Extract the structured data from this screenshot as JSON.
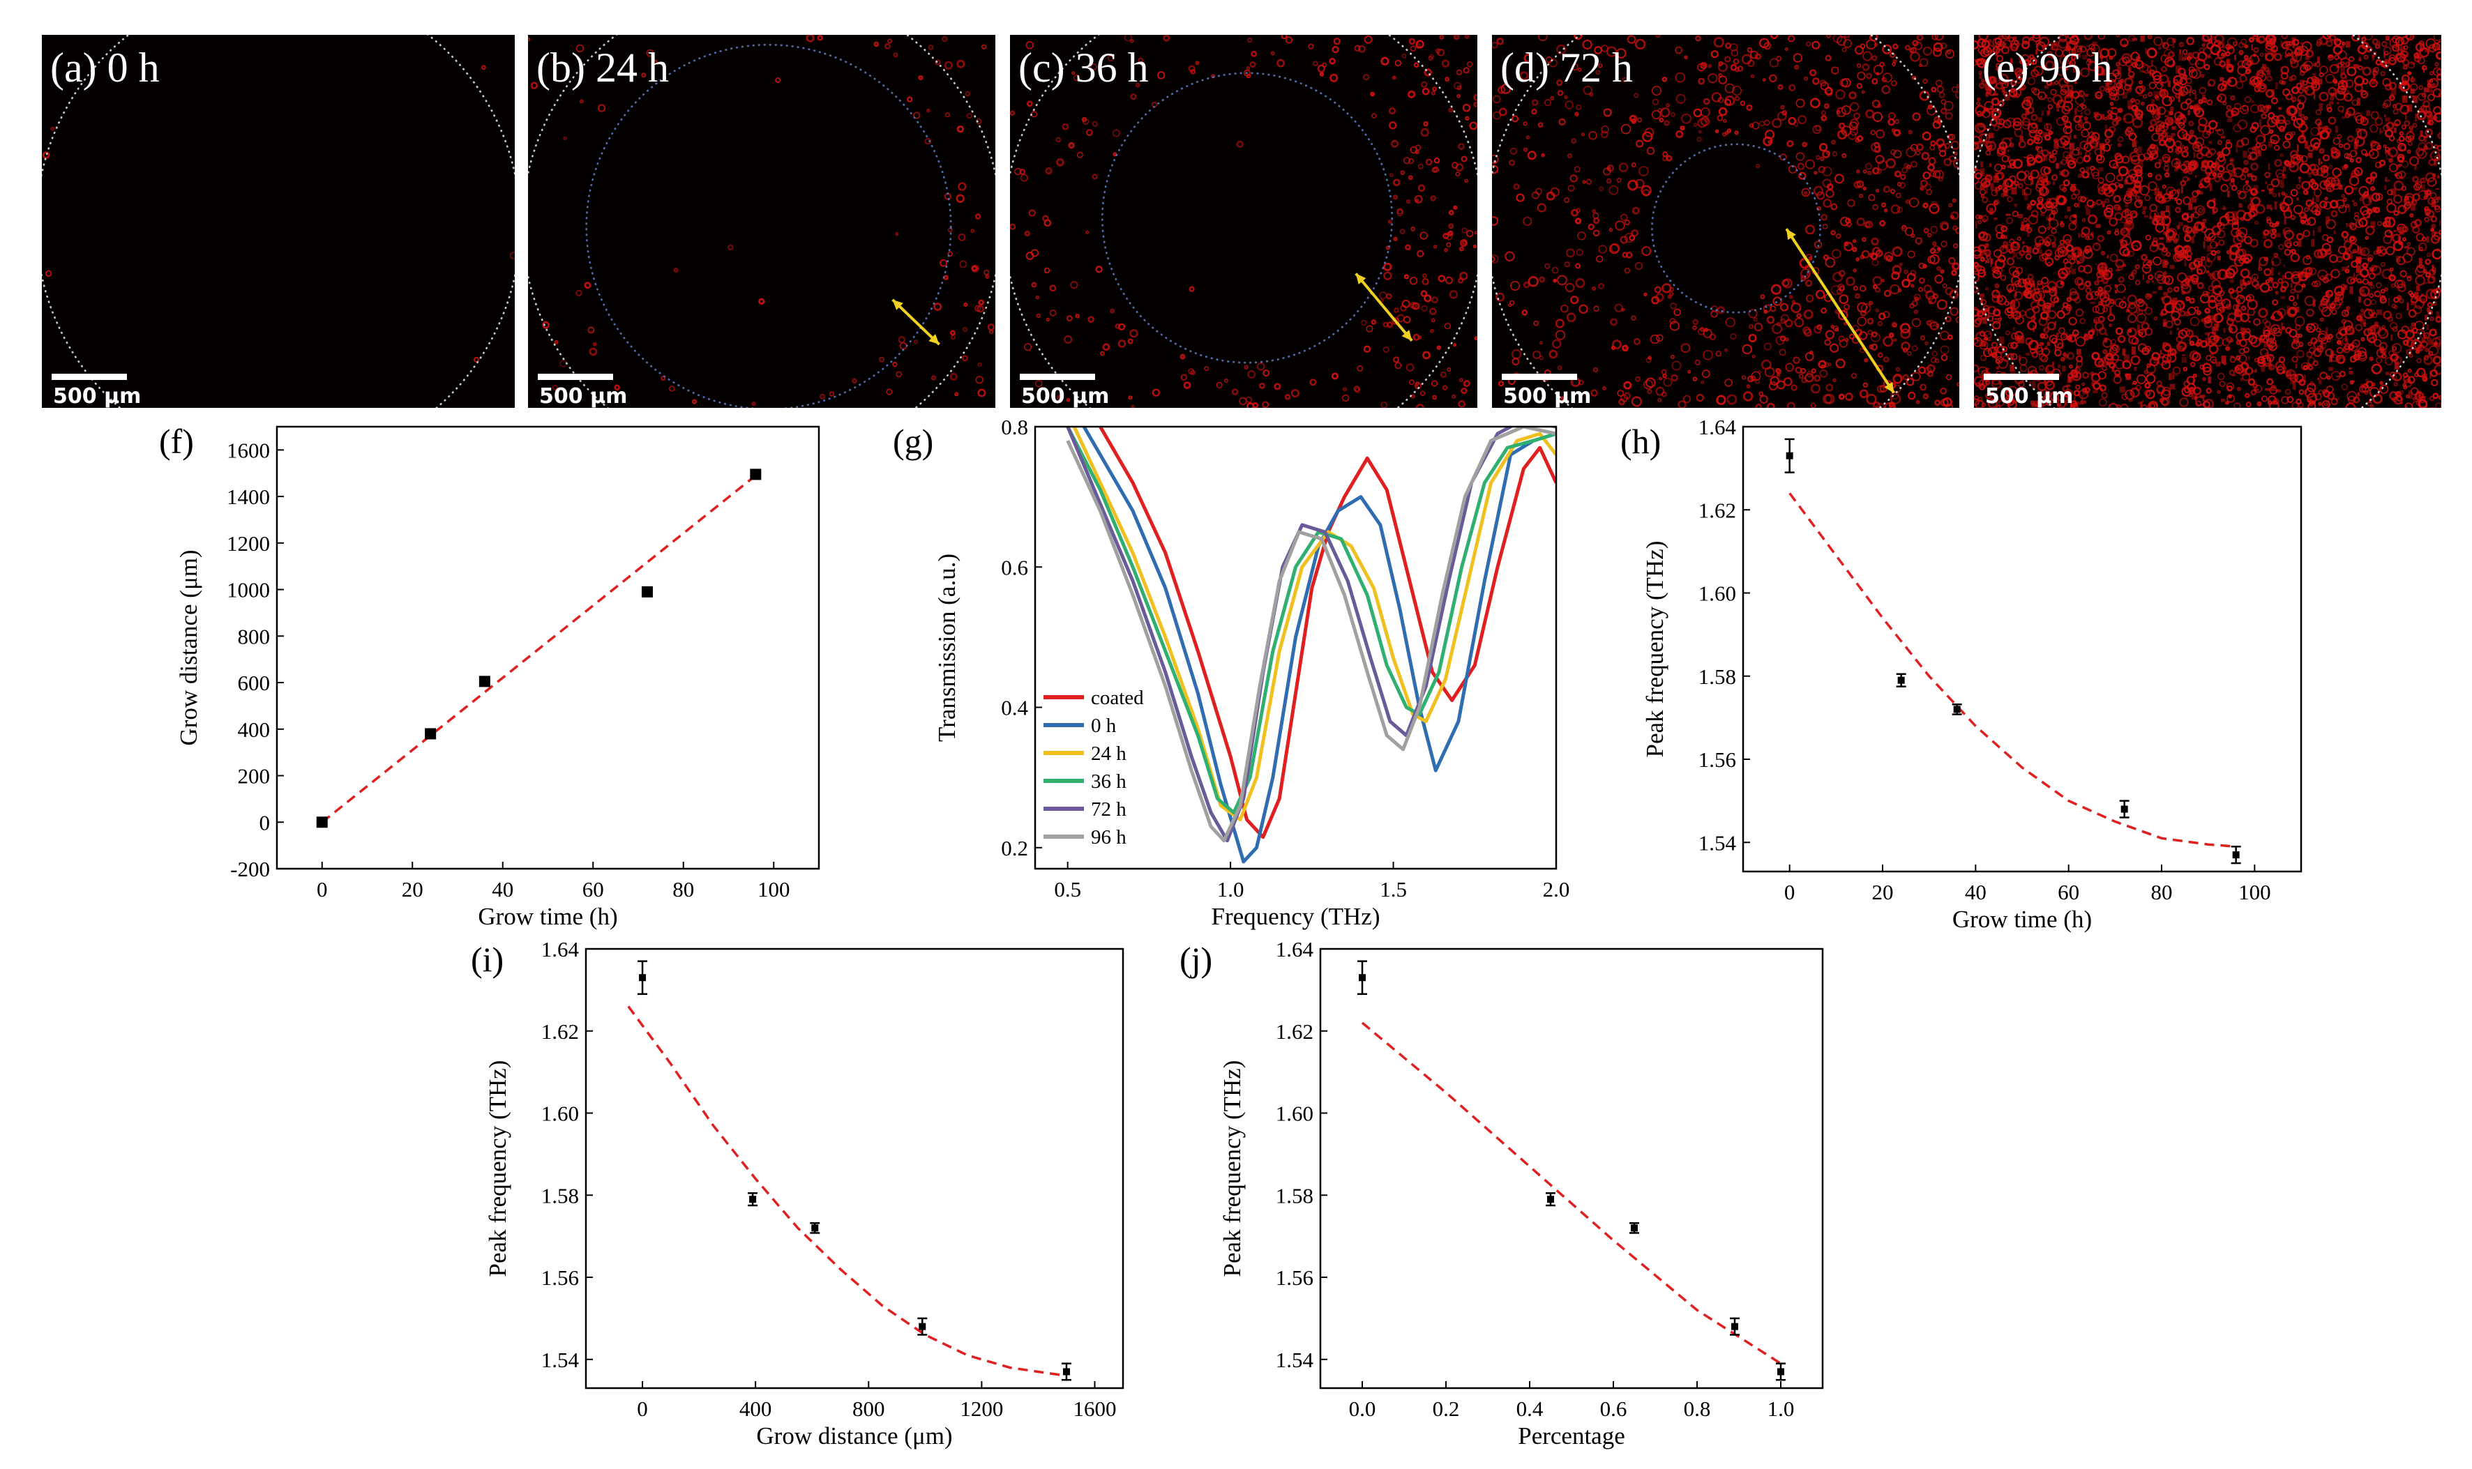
{
  "image_panels": [
    {
      "label": "(a) 0 h",
      "scale": "500 µm",
      "inner_ring": false,
      "arrow": false,
      "density": 0
    },
    {
      "label": "(b) 24 h",
      "scale": "500 µm",
      "inner_ring": true,
      "arrow": true,
      "density": 0.12
    },
    {
      "label": "(c) 36 h",
      "scale": "500 µm",
      "inner_ring": true,
      "arrow": true,
      "density": 0.22
    },
    {
      "label": "(d) 72 h",
      "scale": "500 µm",
      "inner_ring": true,
      "arrow": true,
      "density": 0.55
    },
    {
      "label": "(e) 96 h",
      "scale": "500 µm",
      "inner_ring": false,
      "arrow": false,
      "density": 1.0
    }
  ],
  "colors": {
    "fit": "#e02020",
    "marker": "#000000",
    "fluor": "#d01010",
    "outer_ring": "#cccccc",
    "inner_ring": "#4f6fb0",
    "arrow": "#f0d020"
  },
  "chart_data": [
    {
      "id": "f",
      "label": "(f)",
      "type": "scatter",
      "title": "",
      "xlabel": "Grow time (h)",
      "ylabel": "Grow distance (μm)",
      "xlim": [
        -10,
        110
      ],
      "ylim": [
        -200,
        1700
      ],
      "xticks": [
        0,
        20,
        40,
        60,
        80,
        100
      ],
      "xtick_labels": [
        "0",
        "20",
        "40",
        "60",
        "80",
        "100"
      ],
      "yticks": [
        -200,
        0,
        200,
        400,
        600,
        800,
        1000,
        1200,
        1400,
        1600
      ],
      "ytick_labels": [
        "-200",
        "0",
        "200",
        "400",
        "600",
        "800",
        "1000",
        "1200",
        "1400",
        "1600"
      ],
      "points": [
        {
          "x": 0,
          "y": 0
        },
        {
          "x": 24,
          "y": 380
        },
        {
          "x": 36,
          "y": 605
        },
        {
          "x": 72,
          "y": 990
        },
        {
          "x": 96,
          "y": 1495
        }
      ],
      "fit": [
        [
          0,
          0
        ],
        [
          96,
          1490
        ]
      ]
    },
    {
      "id": "g",
      "label": "(g)",
      "type": "line",
      "title": "",
      "xlabel": "Frequency (THz)",
      "ylabel": "Transmission (a.u.)",
      "xlim": [
        0.4,
        2.0
      ],
      "ylim": [
        0.17,
        0.8
      ],
      "xticks": [
        0.5,
        1.0,
        1.5,
        2.0
      ],
      "xtick_labels": [
        "0.5",
        "1.0",
        "1.5",
        "2.0"
      ],
      "yticks": [
        0.2,
        0.4,
        0.6,
        0.8
      ],
      "ytick_labels": [
        "0.2",
        "0.4",
        "0.6",
        "0.8"
      ],
      "series": [
        {
          "name": "coated",
          "color": "#e02020",
          "values": [
            [
              0.5,
              0.88
            ],
            [
              0.6,
              0.8
            ],
            [
              0.7,
              0.72
            ],
            [
              0.8,
              0.62
            ],
            [
              0.9,
              0.48
            ],
            [
              1.0,
              0.33
            ],
            [
              1.05,
              0.24
            ],
            [
              1.1,
              0.215
            ],
            [
              1.15,
              0.27
            ],
            [
              1.2,
              0.42
            ],
            [
              1.25,
              0.57
            ],
            [
              1.3,
              0.65
            ],
            [
              1.35,
              0.7
            ],
            [
              1.42,
              0.755
            ],
            [
              1.48,
              0.71
            ],
            [
              1.55,
              0.58
            ],
            [
              1.62,
              0.45
            ],
            [
              1.68,
              0.41
            ],
            [
              1.75,
              0.46
            ],
            [
              1.82,
              0.6
            ],
            [
              1.9,
              0.74
            ],
            [
              1.95,
              0.77
            ],
            [
              2.0,
              0.72
            ]
          ]
        },
        {
          "name": "0 h",
          "color": "#2f6db0",
          "values": [
            [
              0.5,
              0.84
            ],
            [
              0.6,
              0.76
            ],
            [
              0.7,
              0.68
            ],
            [
              0.8,
              0.57
            ],
            [
              0.9,
              0.42
            ],
            [
              0.97,
              0.29
            ],
            [
              1.04,
              0.18
            ],
            [
              1.08,
              0.2
            ],
            [
              1.13,
              0.3
            ],
            [
              1.2,
              0.5
            ],
            [
              1.27,
              0.63
            ],
            [
              1.33,
              0.68
            ],
            [
              1.4,
              0.7
            ],
            [
              1.46,
              0.66
            ],
            [
              1.52,
              0.54
            ],
            [
              1.58,
              0.4
            ],
            [
              1.63,
              0.31
            ],
            [
              1.7,
              0.38
            ],
            [
              1.78,
              0.58
            ],
            [
              1.86,
              0.76
            ],
            [
              1.93,
              0.78
            ],
            [
              2.0,
              0.79
            ]
          ]
        },
        {
          "name": "24 h",
          "color": "#f0c020",
          "values": [
            [
              0.5,
              0.82
            ],
            [
              0.6,
              0.72
            ],
            [
              0.7,
              0.62
            ],
            [
              0.8,
              0.5
            ],
            [
              0.9,
              0.37
            ],
            [
              0.97,
              0.26
            ],
            [
              1.03,
              0.24
            ],
            [
              1.08,
              0.3
            ],
            [
              1.15,
              0.48
            ],
            [
              1.22,
              0.6
            ],
            [
              1.3,
              0.65
            ],
            [
              1.37,
              0.63
            ],
            [
              1.44,
              0.57
            ],
            [
              1.5,
              0.47
            ],
            [
              1.56,
              0.39
            ],
            [
              1.6,
              0.38
            ],
            [
              1.66,
              0.44
            ],
            [
              1.73,
              0.58
            ],
            [
              1.8,
              0.72
            ],
            [
              1.88,
              0.78
            ],
            [
              1.95,
              0.79
            ],
            [
              2.0,
              0.76
            ]
          ]
        },
        {
          "name": "36 h",
          "color": "#30b070",
          "values": [
            [
              0.5,
              0.8
            ],
            [
              0.6,
              0.71
            ],
            [
              0.7,
              0.6
            ],
            [
              0.8,
              0.48
            ],
            [
              0.9,
              0.36
            ],
            [
              0.96,
              0.27
            ],
            [
              1.01,
              0.25
            ],
            [
              1.06,
              0.3
            ],
            [
              1.13,
              0.48
            ],
            [
              1.2,
              0.6
            ],
            [
              1.27,
              0.65
            ],
            [
              1.34,
              0.64
            ],
            [
              1.42,
              0.56
            ],
            [
              1.48,
              0.46
            ],
            [
              1.54,
              0.4
            ],
            [
              1.58,
              0.39
            ],
            [
              1.64,
              0.45
            ],
            [
              1.71,
              0.6
            ],
            [
              1.78,
              0.72
            ],
            [
              1.85,
              0.77
            ],
            [
              1.93,
              0.78
            ],
            [
              2.0,
              0.79
            ]
          ]
        },
        {
          "name": "72 h",
          "color": "#6a5a9a",
          "values": [
            [
              0.5,
              0.8
            ],
            [
              0.6,
              0.69
            ],
            [
              0.7,
              0.58
            ],
            [
              0.8,
              0.45
            ],
            [
              0.88,
              0.33
            ],
            [
              0.94,
              0.25
            ],
            [
              0.99,
              0.21
            ],
            [
              1.04,
              0.27
            ],
            [
              1.1,
              0.45
            ],
            [
              1.16,
              0.6
            ],
            [
              1.22,
              0.66
            ],
            [
              1.29,
              0.65
            ],
            [
              1.36,
              0.58
            ],
            [
              1.43,
              0.47
            ],
            [
              1.49,
              0.38
            ],
            [
              1.54,
              0.36
            ],
            [
              1.6,
              0.43
            ],
            [
              1.67,
              0.58
            ],
            [
              1.74,
              0.72
            ],
            [
              1.82,
              0.79
            ],
            [
              1.9,
              0.81
            ],
            [
              2.0,
              0.8
            ]
          ]
        },
        {
          "name": "96 h",
          "color": "#a0a0a0",
          "values": [
            [
              0.5,
              0.78
            ],
            [
              0.6,
              0.68
            ],
            [
              0.7,
              0.56
            ],
            [
              0.8,
              0.43
            ],
            [
              0.88,
              0.31
            ],
            [
              0.94,
              0.23
            ],
            [
              0.98,
              0.21
            ],
            [
              1.03,
              0.26
            ],
            [
              1.09,
              0.43
            ],
            [
              1.15,
              0.58
            ],
            [
              1.21,
              0.65
            ],
            [
              1.28,
              0.64
            ],
            [
              1.35,
              0.56
            ],
            [
              1.42,
              0.45
            ],
            [
              1.48,
              0.36
            ],
            [
              1.53,
              0.34
            ],
            [
              1.58,
              0.4
            ],
            [
              1.65,
              0.56
            ],
            [
              1.72,
              0.7
            ],
            [
              1.8,
              0.78
            ],
            [
              1.9,
              0.8
            ],
            [
              2.0,
              0.79
            ]
          ]
        }
      ]
    },
    {
      "id": "h",
      "label": "(h)",
      "type": "scatter",
      "title": "",
      "xlabel": "Grow time (h)",
      "ylabel": "Peak frequency (THz)",
      "xlim": [
        -10,
        110
      ],
      "ylim": [
        1.533,
        1.64
      ],
      "xticks": [
        0,
        20,
        40,
        60,
        80,
        100
      ],
      "xtick_labels": [
        "0",
        "20",
        "40",
        "60",
        "80",
        "100"
      ],
      "yticks": [
        1.54,
        1.56,
        1.58,
        1.6,
        1.62,
        1.64
      ],
      "ytick_labels": [
        "1.54",
        "1.56",
        "1.58",
        "1.60",
        "1.62",
        "1.64"
      ],
      "points": [
        {
          "x": 0,
          "y": 1.633,
          "err": 0.004
        },
        {
          "x": 24,
          "y": 1.579,
          "err": 0.0015
        },
        {
          "x": 36,
          "y": 1.572,
          "err": 0.0012
        },
        {
          "x": 72,
          "y": 1.548,
          "err": 0.002
        },
        {
          "x": 96,
          "y": 1.537,
          "err": 0.002
        }
      ],
      "fit": [
        [
          0,
          1.624
        ],
        [
          10,
          1.609
        ],
        [
          20,
          1.594
        ],
        [
          30,
          1.58
        ],
        [
          40,
          1.568
        ],
        [
          50,
          1.558
        ],
        [
          60,
          1.55
        ],
        [
          70,
          1.545
        ],
        [
          80,
          1.541
        ],
        [
          90,
          1.5395
        ],
        [
          96,
          1.539
        ]
      ]
    },
    {
      "id": "i",
      "label": "(i)",
      "type": "scatter",
      "title": "",
      "xlabel": "Grow distance (μm)",
      "ylabel": "Peak frequency (THz)",
      "xlim": [
        -200,
        1700
      ],
      "ylim": [
        1.533,
        1.64
      ],
      "xticks": [
        0,
        400,
        800,
        1200,
        1600
      ],
      "xtick_labels": [
        "0",
        "400",
        "800",
        "1200",
        "1600"
      ],
      "yticks": [
        1.54,
        1.56,
        1.58,
        1.6,
        1.62,
        1.64
      ],
      "ytick_labels": [
        "1.54",
        "1.56",
        "1.58",
        "1.60",
        "1.62",
        "1.64"
      ],
      "points": [
        {
          "x": 0,
          "y": 1.633,
          "err": 0.004
        },
        {
          "x": 390,
          "y": 1.579,
          "err": 0.0015
        },
        {
          "x": 610,
          "y": 1.572,
          "err": 0.0012
        },
        {
          "x": 990,
          "y": 1.548,
          "err": 0.002
        },
        {
          "x": 1500,
          "y": 1.537,
          "err": 0.002
        }
      ],
      "fit": [
        [
          -50,
          1.626
        ],
        [
          100,
          1.612
        ],
        [
          250,
          1.597
        ],
        [
          400,
          1.584
        ],
        [
          550,
          1.572
        ],
        [
          700,
          1.562
        ],
        [
          850,
          1.553
        ],
        [
          1000,
          1.546
        ],
        [
          1150,
          1.541
        ],
        [
          1300,
          1.538
        ],
        [
          1450,
          1.5365
        ],
        [
          1500,
          1.536
        ]
      ]
    },
    {
      "id": "j",
      "label": "(j)",
      "type": "scatter",
      "title": "",
      "xlabel": "Percentage",
      "ylabel": "Peak frequency (THz)",
      "xlim": [
        -0.1,
        1.1
      ],
      "ylim": [
        1.533,
        1.64
      ],
      "xticks": [
        0.0,
        0.2,
        0.4,
        0.6,
        0.8,
        1.0
      ],
      "xtick_labels": [
        "0.0",
        "0.2",
        "0.4",
        "0.6",
        "0.8",
        "1.0"
      ],
      "yticks": [
        1.54,
        1.56,
        1.58,
        1.6,
        1.62,
        1.64
      ],
      "ytick_labels": [
        "1.54",
        "1.56",
        "1.58",
        "1.60",
        "1.62",
        "1.64"
      ],
      "points": [
        {
          "x": 0,
          "y": 1.633,
          "err": 0.004
        },
        {
          "x": 0.45,
          "y": 1.579,
          "err": 0.0015
        },
        {
          "x": 0.65,
          "y": 1.572,
          "err": 0.0012
        },
        {
          "x": 0.89,
          "y": 1.548,
          "err": 0.002
        },
        {
          "x": 1.0,
          "y": 1.537,
          "err": 0.002
        }
      ],
      "fit": [
        [
          0,
          1.622
        ],
        [
          0.2,
          1.605
        ],
        [
          0.4,
          1.587
        ],
        [
          0.6,
          1.569
        ],
        [
          0.8,
          1.552
        ],
        [
          1.0,
          1.539
        ]
      ]
    }
  ]
}
